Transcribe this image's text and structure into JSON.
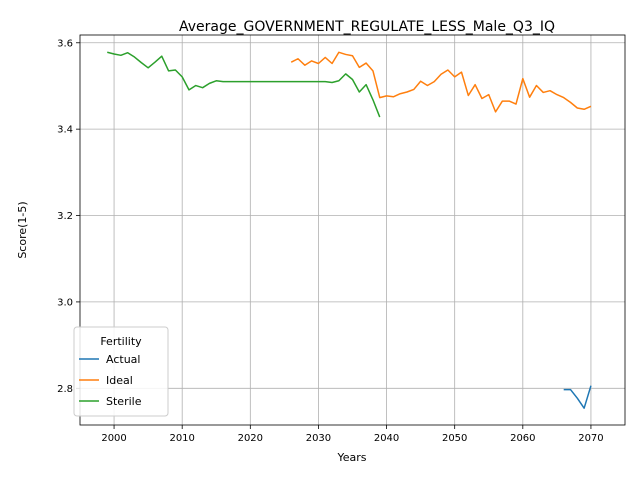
{
  "chart_data": {
    "type": "line",
    "title": "Average_GOVERNMENT_REGULATE_LESS_Male_Q3_IQ",
    "xlabel": "Years",
    "ylabel": "Score(1-5)",
    "xlim": [
      1995,
      2075
    ],
    "ylim": [
      2.715,
      3.618
    ],
    "x_ticks": [
      2000,
      2010,
      2020,
      2030,
      2040,
      2050,
      2060,
      2070
    ],
    "y_ticks": [
      2.8,
      3.0,
      3.2,
      3.4,
      3.6
    ],
    "x_tick_labels": [
      "2000",
      "2010",
      "2020",
      "2030",
      "2040",
      "2050",
      "2060",
      "2070"
    ],
    "y_tick_labels": [
      "2.8",
      "3.0",
      "3.2",
      "3.4",
      "3.6"
    ],
    "grid": true,
    "legend": {
      "title": "Fertility",
      "position": "lower-left"
    },
    "series": [
      {
        "name": "Actual",
        "color": "#1f77b4",
        "x": [
          2066,
          2067,
          2068,
          2069,
          2070
        ],
        "y": [
          2.797,
          2.797,
          2.777,
          2.754,
          2.806
        ]
      },
      {
        "name": "Ideal",
        "color": "#ff7f0e",
        "x": [
          2026,
          2027,
          2028,
          2029,
          2030,
          2031,
          2032,
          2033,
          2034,
          2035,
          2036,
          2037,
          2038,
          2039,
          2040,
          2041,
          2042,
          2043,
          2044,
          2045,
          2046,
          2047,
          2048,
          2049,
          2050,
          2051,
          2052,
          2053,
          2054,
          2055,
          2056,
          2057,
          2058,
          2059,
          2060,
          2061,
          2062,
          2063,
          2064,
          2065,
          2066,
          2067,
          2068,
          2069,
          2070
        ],
        "y": [
          3.555,
          3.563,
          3.548,
          3.558,
          3.552,
          3.566,
          3.552,
          3.578,
          3.573,
          3.57,
          3.543,
          3.553,
          3.535,
          3.473,
          3.477,
          3.475,
          3.482,
          3.486,
          3.492,
          3.511,
          3.501,
          3.51,
          3.527,
          3.537,
          3.521,
          3.532,
          3.478,
          3.503,
          3.471,
          3.48,
          3.44,
          3.465,
          3.465,
          3.458,
          3.517,
          3.474,
          3.501,
          3.485,
          3.489,
          3.48,
          3.473,
          3.462,
          3.449,
          3.446,
          3.453
        ]
      },
      {
        "name": "Sterile",
        "color": "#2ca02c",
        "x": [
          1999,
          2000,
          2001,
          2002,
          2003,
          2004,
          2005,
          2006,
          2007,
          2008,
          2009,
          2010,
          2011,
          2012,
          2013,
          2014,
          2015,
          2016,
          2017,
          2018,
          2019,
          2020,
          2021,
          2022,
          2023,
          2024,
          2025,
          2026,
          2027,
          2028,
          2029,
          2030,
          2031,
          2032,
          2033,
          2034,
          2035,
          2036,
          2037,
          2038,
          2039
        ],
        "y": [
          3.578,
          3.574,
          3.571,
          3.577,
          3.567,
          3.554,
          3.542,
          3.555,
          3.569,
          3.535,
          3.537,
          3.521,
          3.491,
          3.501,
          3.496,
          3.506,
          3.512,
          3.51,
          3.51,
          3.51,
          3.51,
          3.51,
          3.51,
          3.51,
          3.51,
          3.51,
          3.51,
          3.51,
          3.51,
          3.51,
          3.51,
          3.51,
          3.51,
          3.508,
          3.512,
          3.528,
          3.515,
          3.486,
          3.503,
          3.468,
          3.428
        ]
      }
    ]
  }
}
